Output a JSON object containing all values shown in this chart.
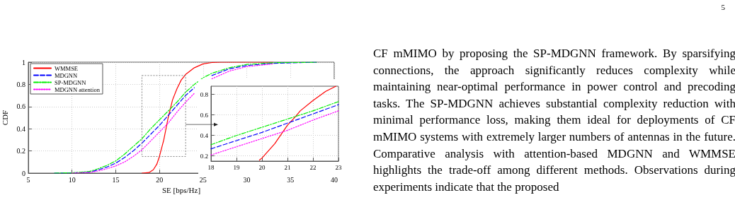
{
  "chart_data": [
    {
      "type": "line",
      "xlabel": "SE [bps/Hz]",
      "ylabel": "CDF",
      "xlim": [
        5,
        40
      ],
      "ylim": [
        0,
        1
      ],
      "xticks": [
        5,
        10,
        15,
        20,
        25,
        30,
        35,
        40
      ],
      "yticks": [
        0,
        0.2,
        0.4,
        0.6,
        0.8,
        1
      ],
      "grid": true,
      "legend": "top left",
      "marker": "none",
      "annotations": [
        "5",
        "CF mMIMO by proposing the SP-MDGNN framework. By sparsifying connections, the approach significantly reduces complexity while maintaining near-optimal performance in power control and precoding tasks. The SP-MDGNN achieves substantial complexity reduction with minimal performance loss, making them ideal for deployments of CF mMIMO systems with extremely larger numbers of antennas in the future. Comparative analysis with attention-based MDGNN and WMMSE highlights the trade-off among different methods. Observations during experiments indicate that the proposed"
      ],
      "series": [
        {
          "name": "WMMSE",
          "color": "#ff0000",
          "line_style": "solid",
          "x": [
            18,
            18.8,
            19.3,
            19.7,
            20,
            20.5,
            21,
            21.5,
            22,
            22.5,
            23,
            24,
            25,
            26,
            27,
            33
          ],
          "values": [
            0,
            0.005,
            0.03,
            0.08,
            0.15,
            0.3,
            0.5,
            0.66,
            0.76,
            0.84,
            0.89,
            0.95,
            0.985,
            0.997,
            1,
            1
          ]
        },
        {
          "name": "MDGNN",
          "color": "#0000ff",
          "line_style": "dashed",
          "x": [
            8,
            10,
            12,
            13,
            14,
            15,
            16,
            17,
            18,
            19,
            20,
            21,
            22,
            23,
            24,
            25,
            26,
            28,
            30,
            33,
            38
          ],
          "values": [
            0,
            0.002,
            0.01,
            0.03,
            0.055,
            0.09,
            0.14,
            0.2,
            0.27,
            0.35,
            0.43,
            0.52,
            0.61,
            0.7,
            0.77,
            null,
            0.88,
            0.94,
            0.97,
            0.99,
            1
          ]
        },
        {
          "name": "SP-MDGNN",
          "color": "#00ee00",
          "line_style": "dashdot",
          "x": [
            8,
            10,
            12,
            13,
            14,
            15,
            16,
            17,
            18,
            19,
            20,
            21,
            22,
            23,
            24,
            25,
            26,
            28,
            30,
            33,
            38
          ],
          "values": [
            0,
            0.003,
            0.015,
            0.04,
            0.07,
            0.11,
            0.17,
            0.24,
            0.31,
            0.4,
            0.48,
            0.56,
            0.64,
            0.73,
            0.8,
            0.86,
            0.9,
            0.95,
            0.98,
            0.995,
            1
          ]
        },
        {
          "name": "MDGNN attention",
          "color": "#ff00ff",
          "line_style": "dotted",
          "x": [
            10,
            12,
            13,
            14,
            15,
            16,
            17,
            18,
            19,
            20,
            21,
            22,
            23,
            24,
            25,
            26,
            28,
            30,
            33
          ],
          "values": [
            0.001,
            0.006,
            0.02,
            0.04,
            0.065,
            0.1,
            0.15,
            0.21,
            0.29,
            0.37,
            0.45,
            0.55,
            0.64,
            0.72,
            null,
            0.85,
            0.92,
            0.96,
            0.985
          ]
        }
      ]
    },
    {
      "type": "line",
      "xlim": [
        18,
        23
      ],
      "ylim": [
        0.15,
        0.88
      ],
      "xticks": [
        18,
        19,
        20,
        21,
        22,
        23
      ],
      "yticks": [
        0.2,
        0.4,
        0.6,
        0.8
      ],
      "grid": true,
      "marker": "none",
      "series": [
        {
          "color": "#ff0000",
          "line_style": "solid",
          "x": [
            19.9,
            20,
            20.5,
            21,
            21.3,
            21.5,
            22,
            22.5,
            22.9
          ],
          "values": [
            0.16,
            0.18,
            0.32,
            0.5,
            0.58,
            0.64,
            0.74,
            0.83,
            0.88
          ]
        },
        {
          "color": "#0000ff",
          "line_style": "dashed",
          "x": [
            18,
            19,
            20,
            21,
            22,
            23
          ],
          "values": [
            0.27,
            0.35,
            0.43,
            0.52,
            0.61,
            0.7
          ]
        },
        {
          "color": "#00ee00",
          "line_style": "dashdot",
          "x": [
            18,
            19,
            20,
            21,
            22,
            23
          ],
          "values": [
            0.31,
            0.4,
            0.48,
            0.56,
            0.64,
            0.73
          ]
        },
        {
          "color": "#ff00ff",
          "line_style": "dotted",
          "x": [
            18,
            19,
            20,
            21,
            22,
            23
          ],
          "values": [
            0.21,
            0.29,
            0.37,
            0.45,
            0.55,
            0.64
          ]
        }
      ]
    }
  ]
}
